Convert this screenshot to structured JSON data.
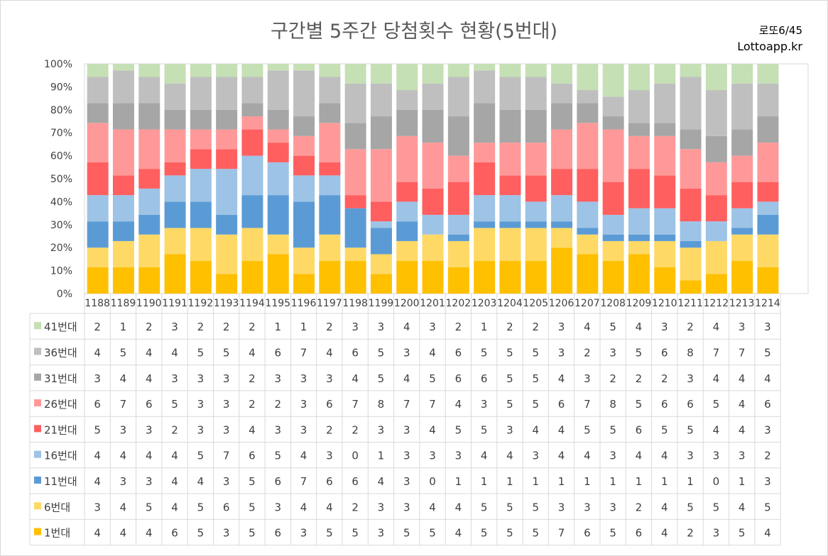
{
  "title": "구간별 5주간 당첨횟수 현황(5번대)",
  "brand": {
    "game": "로또6/45",
    "site": "Lottoapp.kr"
  },
  "colors": {
    "41번대": "#c5e0b4",
    "36번대": "#bfbfbf",
    "31번대": "#a6a6a6",
    "26번대": "#ff9999",
    "21번대": "#ff5f5f",
    "16번대": "#9dc3e6",
    "11번대": "#5b9bd5",
    "6번대": "#ffd966",
    "1번대": "#ffc000"
  },
  "chart_data": {
    "type": "bar",
    "stacked": "percent",
    "title": "구간별 5주간 당첨횟수 현황(5번대)",
    "ylim": [
      0,
      100
    ],
    "yticks": [
      "0%",
      "10%",
      "20%",
      "30%",
      "40%",
      "50%",
      "60%",
      "70%",
      "80%",
      "90%",
      "100%"
    ],
    "grid": false,
    "categories": [
      "1188",
      "1189",
      "1190",
      "1191",
      "1192",
      "1193",
      "1194",
      "1195",
      "1196",
      "1197",
      "1198",
      "1199",
      "1200",
      "1201",
      "1202",
      "1203",
      "1204",
      "1205",
      "1206",
      "1207",
      "1208",
      "1209",
      "1210",
      "1211",
      "1212",
      "1213",
      "1214"
    ],
    "series": [
      {
        "name": "41번대",
        "values": [
          2,
          1,
          2,
          3,
          2,
          2,
          2,
          1,
          1,
          2,
          3,
          3,
          4,
          3,
          2,
          1,
          2,
          2,
          3,
          4,
          5,
          4,
          3,
          2,
          4,
          3,
          3
        ]
      },
      {
        "name": "36번대",
        "values": [
          4,
          5,
          4,
          4,
          5,
          5,
          4,
          6,
          7,
          4,
          6,
          5,
          3,
          4,
          6,
          5,
          5,
          5,
          3,
          2,
          3,
          5,
          6,
          8,
          7,
          7,
          5
        ]
      },
      {
        "name": "31번대",
        "values": [
          3,
          4,
          4,
          3,
          3,
          3,
          2,
          3,
          3,
          3,
          4,
          5,
          4,
          5,
          6,
          6,
          5,
          5,
          4,
          3,
          2,
          2,
          2,
          3,
          4,
          4,
          4
        ]
      },
      {
        "name": "26번대",
        "values": [
          6,
          7,
          6,
          5,
          3,
          3,
          2,
          2,
          3,
          6,
          7,
          8,
          7,
          7,
          4,
          3,
          5,
          5,
          6,
          7,
          8,
          5,
          6,
          6,
          5,
          4,
          6
        ]
      },
      {
        "name": "21번대",
        "values": [
          5,
          3,
          3,
          2,
          3,
          3,
          4,
          3,
          3,
          2,
          2,
          3,
          3,
          4,
          5,
          5,
          3,
          4,
          4,
          5,
          5,
          6,
          5,
          5,
          4,
          4,
          3
        ]
      },
      {
        "name": "16번대",
        "values": [
          4,
          4,
          4,
          4,
          5,
          7,
          6,
          5,
          4,
          3,
          0,
          1,
          3,
          3,
          3,
          4,
          4,
          3,
          4,
          4,
          3,
          4,
          4,
          3,
          3,
          3,
          2
        ]
      },
      {
        "name": "11번대",
        "values": [
          4,
          3,
          3,
          4,
          4,
          3,
          5,
          6,
          7,
          6,
          6,
          4,
          3,
          0,
          1,
          1,
          1,
          1,
          1,
          1,
          1,
          1,
          1,
          1,
          0,
          1,
          3
        ]
      },
      {
        "name": "6번대",
        "values": [
          3,
          4,
          5,
          4,
          5,
          6,
          5,
          3,
          4,
          4,
          2,
          3,
          3,
          4,
          4,
          5,
          5,
          5,
          3,
          3,
          3,
          2,
          4,
          5,
          5,
          4,
          5
        ]
      },
      {
        "name": "1번대",
        "values": [
          4,
          4,
          4,
          6,
          5,
          3,
          5,
          6,
          3,
          5,
          5,
          3,
          5,
          5,
          4,
          5,
          5,
          5,
          7,
          6,
          5,
          6,
          4,
          2,
          3,
          5,
          4
        ]
      }
    ]
  }
}
